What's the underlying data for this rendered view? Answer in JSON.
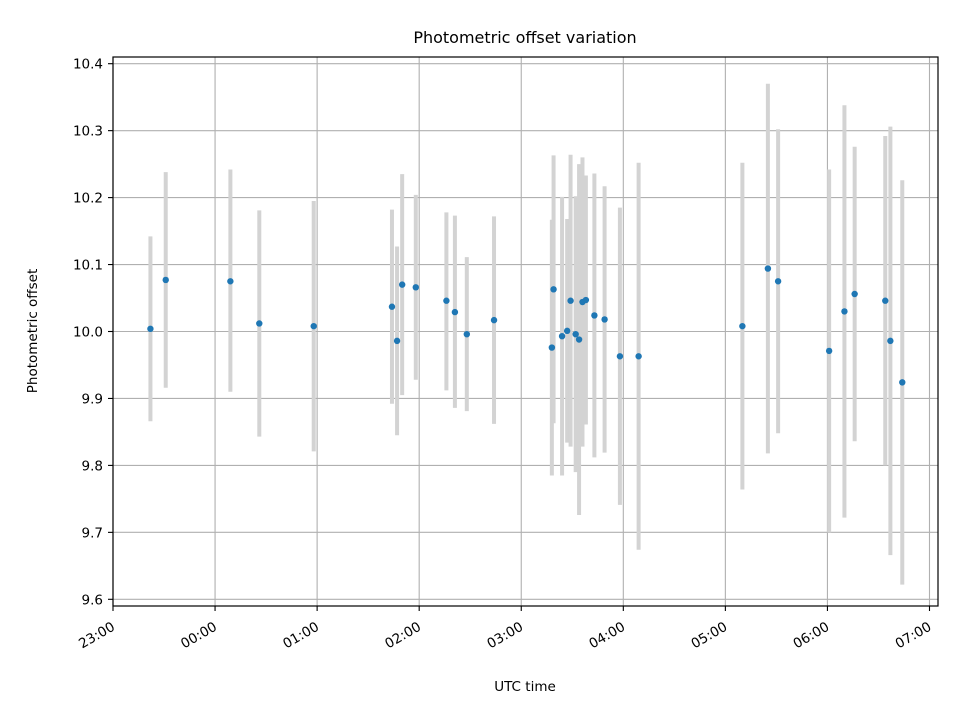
{
  "chart_data": {
    "type": "scatter",
    "title": "Photometric offset variation",
    "xlabel": "UTC time",
    "ylabel": "Photometric offset",
    "xlim": [
      "23:00",
      "07:05"
    ],
    "ylim": [
      9.59,
      10.41
    ],
    "grid": true,
    "x_ticks": [
      "23:00",
      "00:00",
      "01:00",
      "02:00",
      "03:00",
      "04:00",
      "05:00",
      "06:00",
      "07:00"
    ],
    "y_ticks": [
      "9.6",
      "9.7",
      "9.8",
      "9.9",
      "10.0",
      "10.1",
      "10.2",
      "10.3",
      "10.4"
    ],
    "colors": {
      "point": "#1f77b4",
      "errorbar": "#d3d3d3",
      "grid": "#b0b0b0"
    },
    "points": [
      {
        "x": "23:22",
        "y": 10.004,
        "ymin": 9.866,
        "ymax": 10.142
      },
      {
        "x": "23:31",
        "y": 10.077,
        "ymin": 9.916,
        "ymax": 10.238
      },
      {
        "x": "00:09",
        "y": 10.075,
        "ymin": 9.91,
        "ymax": 10.242
      },
      {
        "x": "00:26",
        "y": 10.012,
        "ymin": 9.843,
        "ymax": 10.181
      },
      {
        "x": "00:58",
        "y": 10.008,
        "ymin": 9.821,
        "ymax": 10.195
      },
      {
        "x": "01:44",
        "y": 10.037,
        "ymin": 9.892,
        "ymax": 10.182
      },
      {
        "x": "01:47",
        "y": 9.986,
        "ymin": 9.845,
        "ymax": 10.127
      },
      {
        "x": "01:50",
        "y": 10.07,
        "ymin": 9.905,
        "ymax": 10.235
      },
      {
        "x": "01:58",
        "y": 10.066,
        "ymin": 9.928,
        "ymax": 10.204
      },
      {
        "x": "02:16",
        "y": 10.046,
        "ymin": 9.912,
        "ymax": 10.178
      },
      {
        "x": "02:21",
        "y": 10.029,
        "ymin": 9.886,
        "ymax": 10.173
      },
      {
        "x": "02:28",
        "y": 9.996,
        "ymin": 9.881,
        "ymax": 10.111
      },
      {
        "x": "02:44",
        "y": 10.017,
        "ymin": 9.862,
        "ymax": 10.172
      },
      {
        "x": "03:18",
        "y": 9.976,
        "ymin": 9.785,
        "ymax": 10.167
      },
      {
        "x": "03:19",
        "y": 10.063,
        "ymin": 9.863,
        "ymax": 10.263
      },
      {
        "x": "03:24",
        "y": 9.993,
        "ymin": 9.785,
        "ymax": 10.201
      },
      {
        "x": "03:27",
        "y": 10.001,
        "ymin": 9.834,
        "ymax": 10.168
      },
      {
        "x": "03:29",
        "y": 10.046,
        "ymin": 9.828,
        "ymax": 10.264
      },
      {
        "x": "03:32",
        "y": 9.996,
        "ymin": 9.79,
        "ymax": 10.202
      },
      {
        "x": "03:34",
        "y": 9.988,
        "ymin": 9.726,
        "ymax": 10.25
      },
      {
        "x": "03:36",
        "y": 10.044,
        "ymin": 9.828,
        "ymax": 10.26
      },
      {
        "x": "03:38",
        "y": 10.047,
        "ymin": 9.861,
        "ymax": 10.233
      },
      {
        "x": "03:43",
        "y": 10.024,
        "ymin": 9.812,
        "ymax": 10.236
      },
      {
        "x": "03:49",
        "y": 10.018,
        "ymin": 9.819,
        "ymax": 10.217
      },
      {
        "x": "03:58",
        "y": 9.963,
        "ymin": 9.741,
        "ymax": 10.185
      },
      {
        "x": "04:09",
        "y": 9.963,
        "ymin": 9.674,
        "ymax": 10.252
      },
      {
        "x": "05:10",
        "y": 10.008,
        "ymin": 9.764,
        "ymax": 10.252
      },
      {
        "x": "05:25",
        "y": 10.094,
        "ymin": 9.818,
        "ymax": 10.37
      },
      {
        "x": "05:31",
        "y": 10.075,
        "ymin": 9.848,
        "ymax": 10.302
      },
      {
        "x": "06:01",
        "y": 9.971,
        "ymin": 9.7,
        "ymax": 10.242
      },
      {
        "x": "06:10",
        "y": 10.03,
        "ymin": 9.722,
        "ymax": 10.338
      },
      {
        "x": "06:16",
        "y": 10.056,
        "ymin": 9.836,
        "ymax": 10.276
      },
      {
        "x": "06:34",
        "y": 10.046,
        "ymin": 9.8,
        "ymax": 10.292
      },
      {
        "x": "06:37",
        "y": 9.986,
        "ymin": 9.666,
        "ymax": 10.306
      },
      {
        "x": "06:44",
        "y": 9.924,
        "ymin": 9.622,
        "ymax": 10.226
      }
    ]
  }
}
